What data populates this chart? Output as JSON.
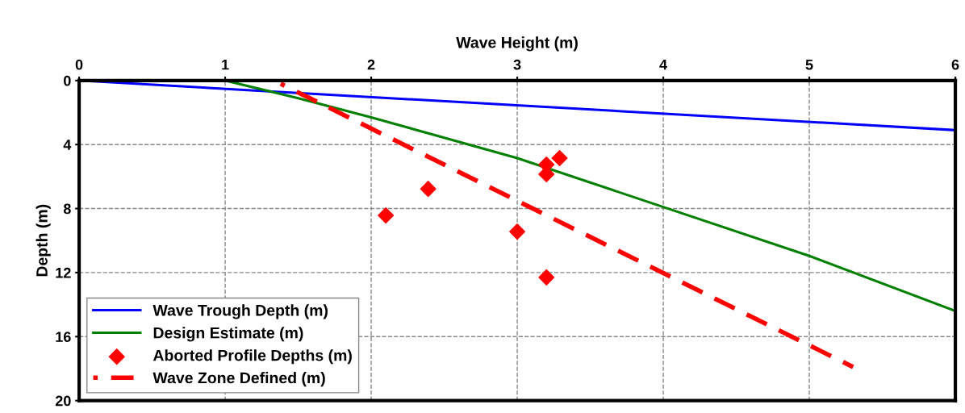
{
  "chart_data": {
    "type": "line",
    "xlabel": "Wave Height (m)",
    "ylabel": "Depth (m)",
    "xlim": [
      0,
      6
    ],
    "xticks": [
      0,
      1,
      2,
      3,
      4,
      5,
      6
    ],
    "ylim": [
      20,
      0
    ],
    "yticks": [
      0,
      4,
      8,
      12,
      16,
      20
    ],
    "grid": true,
    "legend": "bottom left",
    "series": [
      {
        "name": "Wave Trough Depth (m)",
        "color": "#0000ff",
        "line_style": "solid",
        "x": [
          0,
          6
        ],
        "values": [
          0,
          3.1
        ]
      },
      {
        "name": "Design Estimate (m)",
        "color": "#008000",
        "line_style": "solid",
        "x": [
          1,
          1.5,
          2,
          3,
          4,
          5,
          6
        ],
        "values": [
          0,
          1.1,
          2.3,
          4.85,
          7.9,
          10.96,
          14.4
        ]
      },
      {
        "name": "Aborted Profile Depths (m)",
        "type": "scatter",
        "color": "#ff0000",
        "marker": "diamond",
        "x": [
          3.29,
          3.2,
          3.2,
          2.39,
          2.1,
          3.0,
          3.2
        ],
        "values": [
          4.85,
          5.25,
          5.85,
          6.77,
          8.43,
          9.44,
          12.3
        ]
      },
      {
        "name": "Wave Zone Defined (m)",
        "color": "#ff0000",
        "line_style": "dashed",
        "x": [
          1.38,
          5.3
        ],
        "values": [
          0.2,
          17.9
        ]
      }
    ]
  }
}
